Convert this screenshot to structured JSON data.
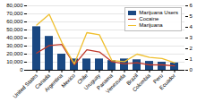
{
  "chart_data": {
    "type": "bar",
    "categories": [
      "United States",
      "Canada",
      "Argentina",
      "Mexico",
      "Chile",
      "Uruguay",
      "Panama",
      "Venezuela",
      "Brazil",
      "Colombia",
      "Peru",
      "Ecuador"
    ],
    "series": [
      {
        "name": "Marijuana Users",
        "type": "bar",
        "color": "#1a4882",
        "values": [
          54000,
          42000,
          20000,
          14000,
          14000,
          14000,
          12000,
          14000,
          13000,
          11000,
          10000,
          9000
        ]
      },
      {
        "name": "Cocaine",
        "type": "line",
        "axis": "y2",
        "color": "#c0392b",
        "values": [
          1.6,
          2.3,
          2.4,
          0.5,
          1.9,
          1.7,
          0.8,
          0.6,
          0.7,
          0.5,
          0.5,
          0.4
        ]
      },
      {
        "name": "Marijuana",
        "type": "line",
        "axis": "y2",
        "color": "#f0c030",
        "values": [
          4.2,
          5.2,
          2.6,
          0.6,
          3.5,
          3.3,
          0.9,
          0.8,
          1.5,
          1.2,
          1.1,
          0.7
        ]
      }
    ],
    "ylim": [
      0,
      80000
    ],
    "yticks": [
      0,
      {
        "value": 10000,
        "label": "10,000"
      },
      {
        "value": 20000,
        "label": "20,000"
      },
      {
        "value": 30000,
        "label": "30,000"
      },
      {
        "value": 40000,
        "label": "40,000"
      },
      {
        "value": 50000,
        "label": "50,000"
      },
      {
        "value": 60000,
        "label": "60,000"
      },
      {
        "value": 70000,
        "label": "70,000"
      },
      {
        "value": 80000,
        "label": "80,000"
      }
    ],
    "y2lim": [
      0,
      6
    ],
    "y2ticks": [
      0,
      1,
      2,
      3,
      4,
      5,
      6
    ],
    "grid": true,
    "legend": "upper right"
  }
}
